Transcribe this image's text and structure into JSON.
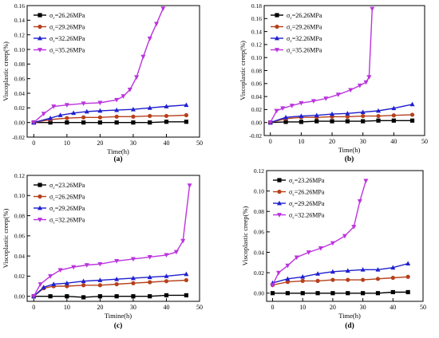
{
  "chart_data": [
    {
      "type": "line",
      "panel_label": "(a)",
      "xlabel": "Time(h)",
      "ylabel": "Viscoplastic creep(%)",
      "xlim": [
        -2,
        50
      ],
      "ylim": [
        -0.02,
        0.16
      ],
      "xticks": [
        0,
        10,
        20,
        30,
        40,
        50
      ],
      "xtick_labels": [
        "0",
        "10",
        "20",
        "30",
        "40",
        "50"
      ],
      "yticks": [
        -0.02,
        0.0,
        0.02,
        0.04,
        0.06,
        0.08,
        0.1,
        0.12,
        0.14,
        0.16
      ],
      "ytick_labels": [
        "-0.02",
        "0.00",
        "0.02",
        "0.04",
        "0.06",
        "0.08",
        "0.10",
        "0.12",
        "0.14",
        "0.16"
      ],
      "legend_position": "top-left",
      "grid": false,
      "series": [
        {
          "name": "σc=26.26MPa",
          "legend_sigma": "σ",
          "legend_sub": "c",
          "legend_rest": "=26.26MPa",
          "color": "#000000",
          "marker": "square",
          "x": [
            0,
            5,
            10,
            15,
            20,
            25,
            30,
            35,
            40,
            46
          ],
          "y": [
            0.0,
            0.0,
            0.0,
            0.0,
            0.0,
            0.0,
            0.0,
            0.0,
            0.001,
            0.001
          ]
        },
        {
          "name": "σc=29.26MPa",
          "legend_sigma": "σ",
          "legend_sub": "c",
          "legend_rest": "=29.26MPa",
          "color": "#b5401b",
          "marker": "circle",
          "x": [
            0,
            5,
            10,
            15,
            20,
            25,
            30,
            35,
            40,
            46
          ],
          "y": [
            0.0,
            0.004,
            0.006,
            0.007,
            0.007,
            0.008,
            0.008,
            0.009,
            0.009,
            0.01
          ]
        },
        {
          "name": "σc=32.26MPa",
          "legend_sigma": "σ",
          "legend_sub": "c",
          "legend_rest": "=32.26MPa",
          "color": "#1f1fcf",
          "marker": "triangle-up",
          "x": [
            0,
            5,
            8,
            12,
            16,
            20,
            25,
            30,
            35,
            40,
            46
          ],
          "y": [
            0.0,
            0.006,
            0.01,
            0.013,
            0.015,
            0.016,
            0.017,
            0.018,
            0.02,
            0.022,
            0.024
          ]
        },
        {
          "name": "σc=35.26MPa",
          "legend_sigma": "σ",
          "legend_sub": "c",
          "legend_rest": "=35.26MPa",
          "color": "#bb33dd",
          "marker": "triangle-down",
          "x": [
            0,
            3,
            6,
            10,
            15,
            20,
            25,
            27,
            29,
            31,
            33,
            35,
            37,
            39
          ],
          "y": [
            0.0,
            0.012,
            0.022,
            0.024,
            0.026,
            0.027,
            0.031,
            0.036,
            0.045,
            0.062,
            0.09,
            0.115,
            0.135,
            0.156
          ]
        }
      ]
    },
    {
      "type": "line",
      "panel_label": "(b)",
      "xlabel": "Time(h)",
      "ylabel": "Viscoplastic creep(%)",
      "xlim": [
        -2,
        50
      ],
      "ylim": [
        -0.02,
        0.18
      ],
      "xticks": [
        0,
        10,
        20,
        30,
        40,
        50
      ],
      "xtick_labels": [
        "0",
        "10",
        "20",
        "30",
        "40",
        "50"
      ],
      "yticks": [
        -0.02,
        0.0,
        0.02,
        0.04,
        0.06,
        0.08,
        0.1,
        0.12,
        0.14,
        0.16,
        0.18
      ],
      "ytick_labels": [
        "-0.02",
        "0.00",
        "0.02",
        "0.04",
        "0.06",
        "0.08",
        "0.10",
        "0.12",
        "0.14",
        "0.16",
        "0.18"
      ],
      "legend_position": "top-left",
      "grid": false,
      "series": [
        {
          "name": "σc=26.26MPa",
          "legend_sigma": "σ",
          "legend_sub": "c",
          "legend_rest": "=26.26MPa",
          "color": "#000000",
          "marker": "square",
          "x": [
            0,
            5,
            10,
            15,
            20,
            25,
            30,
            35,
            40,
            46
          ],
          "y": [
            0.0,
            0.001,
            0.001,
            0.002,
            0.002,
            0.002,
            0.002,
            0.003,
            0.003,
            0.003
          ]
        },
        {
          "name": "σc=29.26MPa",
          "legend_sigma": "σ",
          "legend_sub": "c",
          "legend_rest": "=29.26MPa",
          "color": "#b5401b",
          "marker": "circle",
          "x": [
            0,
            5,
            10,
            15,
            20,
            25,
            30,
            35,
            40,
            46
          ],
          "y": [
            0.0,
            0.006,
            0.008,
            0.008,
            0.009,
            0.009,
            0.01,
            0.01,
            0.011,
            0.012
          ]
        },
        {
          "name": "σc=32.26MPa",
          "legend_sigma": "σ",
          "legend_sub": "c",
          "legend_rest": "=32.26MPa",
          "color": "#1f1fcf",
          "marker": "triangle-up",
          "x": [
            0,
            5,
            10,
            15,
            20,
            25,
            30,
            35,
            40,
            46
          ],
          "y": [
            0.0,
            0.008,
            0.01,
            0.011,
            0.013,
            0.014,
            0.016,
            0.018,
            0.022,
            0.028
          ]
        },
        {
          "name": "σc=35.26MPa",
          "legend_sigma": "σ",
          "legend_sub": "c",
          "legend_rest": "=35.26MPa",
          "color": "#bb33dd",
          "marker": "triangle-down",
          "x": [
            0,
            2,
            4,
            7,
            10,
            14,
            18,
            22,
            26,
            29,
            31,
            32,
            33
          ],
          "y": [
            0.0,
            0.018,
            0.022,
            0.026,
            0.03,
            0.033,
            0.037,
            0.043,
            0.05,
            0.057,
            0.062,
            0.07,
            0.175
          ]
        }
      ]
    },
    {
      "type": "line",
      "panel_label": "(c)",
      "xlabel": "Timine(h)",
      "ylabel": "Viscoplastic creep(%)",
      "xlim": [
        -2,
        50
      ],
      "ylim": [
        -0.005,
        0.12
      ],
      "xticks": [
        0,
        10,
        20,
        30,
        40,
        50
      ],
      "xtick_labels": [
        "0",
        "10",
        "20",
        "30",
        "40",
        "50"
      ],
      "yticks": [
        0.0,
        0.02,
        0.04,
        0.06,
        0.08,
        0.1,
        0.12
      ],
      "ytick_labels": [
        "0.00",
        "0.02",
        "0.04",
        "0.06",
        "0.08",
        "0.10",
        "0.12"
      ],
      "legend_position": "top-left",
      "grid": false,
      "series": [
        {
          "name": "σc=23.26MPa",
          "legend_sigma": "σ",
          "legend_sub": "c",
          "legend_rest": "=23.26MPa",
          "color": "#000000",
          "marker": "square",
          "x": [
            0,
            5,
            10,
            15,
            20,
            25,
            30,
            35,
            40,
            46
          ],
          "y": [
            0.0,
            0.0,
            0.0,
            -0.001,
            0.0,
            0.0,
            0.0,
            0.0,
            0.001,
            0.001
          ]
        },
        {
          "name": "σc=26.26MPa",
          "legend_sigma": "σ",
          "legend_sub": "c",
          "legend_rest": "=26.26MPa",
          "color": "#b5401b",
          "marker": "circle",
          "x": [
            0,
            3,
            6,
            10,
            15,
            20,
            25,
            30,
            35,
            40,
            46
          ],
          "y": [
            0.0,
            0.008,
            0.01,
            0.01,
            0.011,
            0.011,
            0.012,
            0.013,
            0.014,
            0.015,
            0.016
          ]
        },
        {
          "name": "σc=29.26MPa",
          "legend_sigma": "σ",
          "legend_sub": "c",
          "legend_rest": "=29.26MPa",
          "color": "#1f1fcf",
          "marker": "triangle-up",
          "x": [
            0,
            3,
            6,
            10,
            15,
            20,
            25,
            30,
            35,
            40,
            46
          ],
          "y": [
            0.0,
            0.009,
            0.012,
            0.013,
            0.015,
            0.016,
            0.017,
            0.018,
            0.019,
            0.02,
            0.022
          ]
        },
        {
          "name": "σc=32.26MPa",
          "legend_sigma": "σ",
          "legend_sub": "c",
          "legend_rest": "=32.26MPa",
          "color": "#bb33dd",
          "marker": "triangle-down",
          "x": [
            0,
            2,
            5,
            8,
            12,
            16,
            20,
            25,
            30,
            35,
            40,
            43,
            45,
            47
          ],
          "y": [
            0.0,
            0.012,
            0.02,
            0.026,
            0.029,
            0.031,
            0.032,
            0.035,
            0.037,
            0.039,
            0.041,
            0.044,
            0.055,
            0.11
          ]
        }
      ]
    },
    {
      "type": "line",
      "panel_label": "(d)",
      "xlabel": "Time(h)",
      "ylabel": "Viscoplastic creep(%)",
      "xlim": [
        -2,
        50
      ],
      "ylim": [
        -0.008,
        0.12
      ],
      "xticks": [
        0,
        10,
        20,
        30,
        40,
        50
      ],
      "xtick_labels": [
        "0",
        "10",
        "20",
        "30",
        "40",
        "50"
      ],
      "yticks": [
        0.0,
        0.02,
        0.04,
        0.06,
        0.08,
        0.1,
        0.12
      ],
      "ytick_labels": [
        "0.00",
        "0.02",
        "0.04",
        "0.06",
        "0.08",
        "0.10",
        "0.12"
      ],
      "legend_position": "top-left",
      "grid": false,
      "series": [
        {
          "name": "σc=23.26MPa",
          "legend_sigma": "σ",
          "legend_sub": "c",
          "legend_rest": "=23.26MPa",
          "color": "#000000",
          "marker": "square",
          "x": [
            0,
            5,
            10,
            15,
            20,
            25,
            30,
            35,
            40,
            45
          ],
          "y": [
            0.0,
            0.0,
            0.0,
            0.0,
            0.0,
            0.0,
            0.0,
            0.0,
            0.001,
            0.001
          ]
        },
        {
          "name": "σc=26.26MPa",
          "legend_sigma": "σ",
          "legend_sub": "c",
          "legend_rest": "=26.26MPa",
          "color": "#b5401b",
          "marker": "circle",
          "x": [
            0,
            5,
            10,
            15,
            20,
            25,
            30,
            35,
            40,
            45
          ],
          "y": [
            0.008,
            0.011,
            0.012,
            0.012,
            0.013,
            0.013,
            0.013,
            0.014,
            0.015,
            0.016
          ]
        },
        {
          "name": "σc=29.26MPa",
          "legend_sigma": "σ",
          "legend_sub": "c",
          "legend_rest": "=29.26MPa",
          "color": "#1f1fcf",
          "marker": "triangle-up",
          "x": [
            0,
            5,
            10,
            15,
            20,
            25,
            30,
            35,
            40,
            45
          ],
          "y": [
            0.01,
            0.014,
            0.016,
            0.019,
            0.021,
            0.022,
            0.023,
            0.023,
            0.025,
            0.029
          ]
        },
        {
          "name": "σc=32.26MPa",
          "legend_sigma": "σ",
          "legend_sub": "c",
          "legend_rest": "=32.26MPa",
          "color": "#bb33dd",
          "marker": "triangle-down",
          "x": [
            0,
            2,
            5,
            8,
            12,
            16,
            20,
            24,
            27,
            29,
            31
          ],
          "y": [
            0.008,
            0.02,
            0.027,
            0.035,
            0.04,
            0.044,
            0.049,
            0.056,
            0.065,
            0.09,
            0.11
          ]
        }
      ]
    }
  ]
}
